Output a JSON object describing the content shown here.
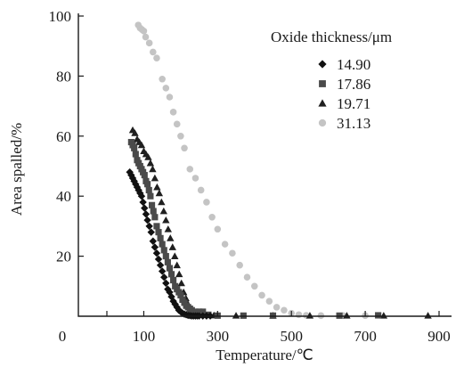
{
  "chart_data": {
    "type": "scatter",
    "xlabel": "Temperature/℃",
    "ylabel": "Area spalled/%",
    "xlim": [
      0,
      900
    ],
    "ylim": [
      0,
      100
    ],
    "xticks": [
      0,
      100,
      300,
      500,
      700,
      900
    ],
    "yticks": [
      20,
      40,
      60,
      80,
      100
    ],
    "legend_title": "Oxide thickness/μm",
    "legend_position": "top-right",
    "grid": false,
    "series": [
      {
        "name": "14.90",
        "marker": "diamond",
        "color": "#111111",
        "points": [
          [
            62,
            48
          ],
          [
            66,
            47
          ],
          [
            70,
            46
          ],
          [
            74,
            45
          ],
          [
            78,
            44
          ],
          [
            82,
            43
          ],
          [
            86,
            42
          ],
          [
            90,
            41
          ],
          [
            94,
            40
          ],
          [
            98,
            38
          ],
          [
            102,
            36
          ],
          [
            106,
            34
          ],
          [
            110,
            32
          ],
          [
            115,
            30
          ],
          [
            120,
            28
          ],
          [
            125,
            25
          ],
          [
            130,
            23
          ],
          [
            135,
            21
          ],
          [
            140,
            19
          ],
          [
            145,
            17
          ],
          [
            150,
            15
          ],
          [
            155,
            13
          ],
          [
            160,
            11
          ],
          [
            165,
            9
          ],
          [
            170,
            8
          ],
          [
            175,
            6.5
          ],
          [
            180,
            5
          ],
          [
            185,
            4
          ],
          [
            190,
            3
          ],
          [
            195,
            2
          ],
          [
            200,
            1.5
          ],
          [
            205,
            1
          ],
          [
            210,
            0.7
          ],
          [
            215,
            0.5
          ],
          [
            220,
            0.3
          ],
          [
            225,
            0.2
          ],
          [
            230,
            0.1
          ],
          [
            235,
            0.1
          ],
          [
            240,
            0.1
          ],
          [
            245,
            0.1
          ],
          [
            250,
            0.1
          ],
          [
            260,
            0.1
          ],
          [
            270,
            0.1
          ],
          [
            280,
            0.1
          ]
        ]
      },
      {
        "name": "17.86",
        "marker": "square",
        "color": "#4a4a4a",
        "points": [
          [
            66,
            58
          ],
          [
            70,
            57
          ],
          [
            74,
            56
          ],
          [
            78,
            54
          ],
          [
            82,
            52
          ],
          [
            86,
            51
          ],
          [
            90,
            50
          ],
          [
            94,
            49
          ],
          [
            98,
            48
          ],
          [
            102,
            47
          ],
          [
            106,
            45
          ],
          [
            110,
            44
          ],
          [
            114,
            42
          ],
          [
            118,
            40
          ],
          [
            122,
            37
          ],
          [
            126,
            35
          ],
          [
            130,
            33
          ],
          [
            135,
            30
          ],
          [
            140,
            28
          ],
          [
            145,
            26
          ],
          [
            150,
            24
          ],
          [
            155,
            22
          ],
          [
            160,
            20
          ],
          [
            165,
            18
          ],
          [
            170,
            16
          ],
          [
            175,
            14
          ],
          [
            180,
            12
          ],
          [
            185,
            10
          ],
          [
            190,
            9
          ],
          [
            195,
            8
          ],
          [
            200,
            7
          ],
          [
            205,
            5.5
          ],
          [
            210,
            4.5
          ],
          [
            215,
            3.5
          ],
          [
            220,
            3
          ],
          [
            225,
            2.5
          ],
          [
            230,
            2
          ],
          [
            240,
            1.5
          ],
          [
            250,
            1.5
          ],
          [
            260,
            1.5
          ],
          [
            275,
            0.5
          ],
          [
            300,
            0.2
          ],
          [
            370,
            0.2
          ],
          [
            450,
            0.2
          ],
          [
            630,
            0.2
          ],
          [
            735,
            0.3
          ]
        ]
      },
      {
        "name": "19.71",
        "marker": "triangle",
        "color": "#1f1f1f",
        "points": [
          [
            70,
            62
          ],
          [
            76,
            61
          ],
          [
            82,
            59
          ],
          [
            88,
            58
          ],
          [
            94,
            57
          ],
          [
            100,
            55
          ],
          [
            106,
            54
          ],
          [
            112,
            53
          ],
          [
            118,
            51
          ],
          [
            124,
            49
          ],
          [
            130,
            46
          ],
          [
            136,
            43
          ],
          [
            142,
            41
          ],
          [
            148,
            38
          ],
          [
            154,
            35
          ],
          [
            160,
            32
          ],
          [
            166,
            29
          ],
          [
            172,
            26
          ],
          [
            178,
            23
          ],
          [
            184,
            20
          ],
          [
            190,
            17
          ],
          [
            196,
            14
          ],
          [
            202,
            11
          ],
          [
            208,
            8
          ],
          [
            214,
            6
          ],
          [
            220,
            4
          ],
          [
            226,
            2.5
          ],
          [
            232,
            1.5
          ],
          [
            240,
            1
          ],
          [
            260,
            0.5
          ],
          [
            290,
            0.3
          ],
          [
            350,
            0.2
          ],
          [
            450,
            0.2
          ],
          [
            550,
            0.2
          ],
          [
            650,
            0.2
          ],
          [
            750,
            0.2
          ],
          [
            870,
            0.2
          ]
        ]
      },
      {
        "name": "31.13",
        "marker": "circle",
        "color": "#c4c4c4",
        "points": [
          [
            85,
            97
          ],
          [
            90,
            96
          ],
          [
            95,
            95.5
          ],
          [
            100,
            95
          ],
          [
            105,
            93
          ],
          [
            115,
            91
          ],
          [
            125,
            88
          ],
          [
            135,
            86
          ],
          [
            150,
            79
          ],
          [
            160,
            76
          ],
          [
            170,
            73
          ],
          [
            180,
            68
          ],
          [
            190,
            64
          ],
          [
            200,
            60
          ],
          [
            210,
            56
          ],
          [
            225,
            49
          ],
          [
            240,
            46
          ],
          [
            255,
            42
          ],
          [
            270,
            38
          ],
          [
            285,
            33
          ],
          [
            300,
            29
          ],
          [
            320,
            24
          ],
          [
            340,
            21
          ],
          [
            360,
            17
          ],
          [
            380,
            13
          ],
          [
            400,
            10
          ],
          [
            420,
            7
          ],
          [
            440,
            5
          ],
          [
            460,
            3
          ],
          [
            480,
            2
          ],
          [
            500,
            1
          ],
          [
            520,
            0.5
          ],
          [
            540,
            0.3
          ],
          [
            580,
            0.2
          ],
          [
            640,
            0.2
          ],
          [
            700,
            0.2
          ]
        ]
      }
    ]
  }
}
